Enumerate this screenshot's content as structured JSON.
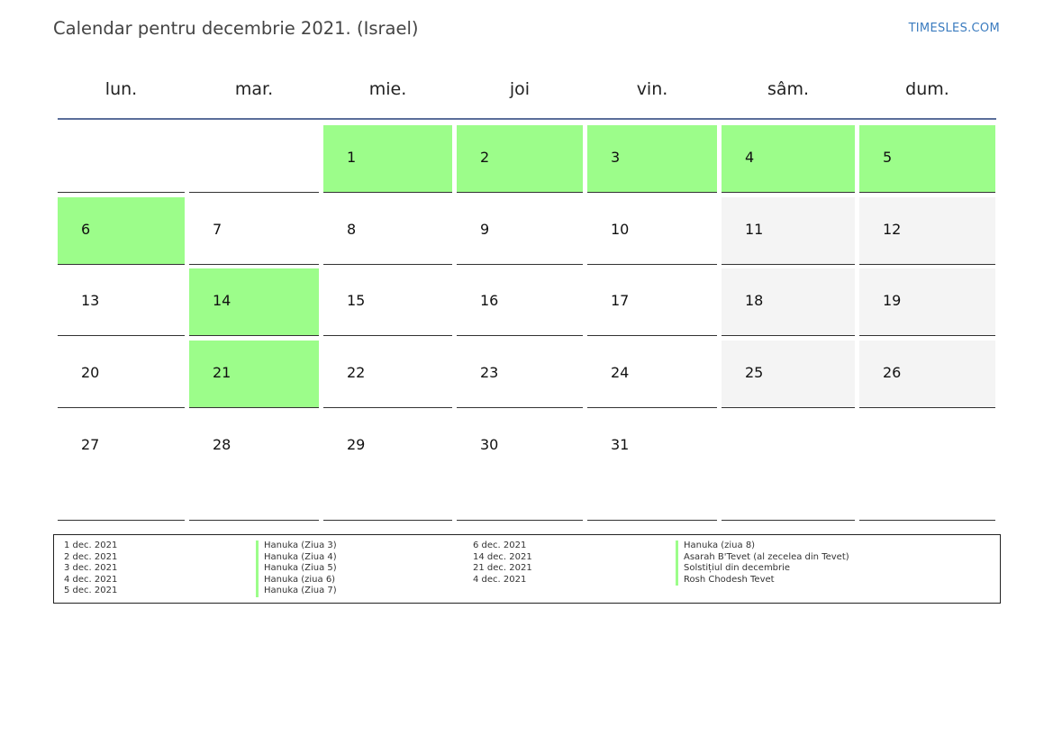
{
  "header": {
    "title": "Calendar pentru decembrie 2021. (Israel)",
    "site": "TIMESLES.COM"
  },
  "weekdays": [
    "lun.",
    "mar.",
    "mie.",
    "joi",
    "vin.",
    "sâm.",
    "dum."
  ],
  "colors": {
    "holiday": "#9cfd8a",
    "weekend": "#f4f4f4",
    "header_line": "#5a6e9a"
  },
  "weeks": [
    [
      {
        "day": "",
        "holiday": false,
        "weekend": false
      },
      {
        "day": "",
        "holiday": false,
        "weekend": false
      },
      {
        "day": "1",
        "holiday": true,
        "weekend": false
      },
      {
        "day": "2",
        "holiday": true,
        "weekend": false
      },
      {
        "day": "3",
        "holiday": true,
        "weekend": false
      },
      {
        "day": "4",
        "holiday": true,
        "weekend": true
      },
      {
        "day": "5",
        "holiday": true,
        "weekend": true
      }
    ],
    [
      {
        "day": "6",
        "holiday": true,
        "weekend": false
      },
      {
        "day": "7",
        "holiday": false,
        "weekend": false
      },
      {
        "day": "8",
        "holiday": false,
        "weekend": false
      },
      {
        "day": "9",
        "holiday": false,
        "weekend": false
      },
      {
        "day": "10",
        "holiday": false,
        "weekend": false
      },
      {
        "day": "11",
        "holiday": false,
        "weekend": true
      },
      {
        "day": "12",
        "holiday": false,
        "weekend": true
      }
    ],
    [
      {
        "day": "13",
        "holiday": false,
        "weekend": false
      },
      {
        "day": "14",
        "holiday": true,
        "weekend": false
      },
      {
        "day": "15",
        "holiday": false,
        "weekend": false
      },
      {
        "day": "16",
        "holiday": false,
        "weekend": false
      },
      {
        "day": "17",
        "holiday": false,
        "weekend": false
      },
      {
        "day": "18",
        "holiday": false,
        "weekend": true
      },
      {
        "day": "19",
        "holiday": false,
        "weekend": true
      }
    ],
    [
      {
        "day": "20",
        "holiday": false,
        "weekend": false
      },
      {
        "day": "21",
        "holiday": true,
        "weekend": false
      },
      {
        "day": "22",
        "holiday": false,
        "weekend": false
      },
      {
        "day": "23",
        "holiday": false,
        "weekend": false
      },
      {
        "day": "24",
        "holiday": false,
        "weekend": false
      },
      {
        "day": "25",
        "holiday": false,
        "weekend": true
      },
      {
        "day": "26",
        "holiday": false,
        "weekend": true
      }
    ],
    [
      {
        "day": "27",
        "holiday": false,
        "weekend": false
      },
      {
        "day": "28",
        "holiday": false,
        "weekend": false
      },
      {
        "day": "29",
        "holiday": false,
        "weekend": false
      },
      {
        "day": "30",
        "holiday": false,
        "weekend": false
      },
      {
        "day": "31",
        "holiday": false,
        "weekend": false
      },
      {
        "day": "",
        "holiday": false,
        "weekend": false
      },
      {
        "day": "",
        "holiday": false,
        "weekend": false
      }
    ]
  ],
  "legend": {
    "left": [
      {
        "date": "1 dec. 2021",
        "name": "Hanuka (Ziua 3)"
      },
      {
        "date": "2 dec. 2021",
        "name": "Hanuka (Ziua 4)"
      },
      {
        "date": "3 dec. 2021",
        "name": "Hanuka (Ziua 5)"
      },
      {
        "date": "4 dec. 2021",
        "name": "Hanuka (ziua 6)"
      },
      {
        "date": "5 dec. 2021",
        "name": "Hanuka (Ziua 7)"
      }
    ],
    "right": [
      {
        "date": "6 dec. 2021",
        "name": "Hanuka (ziua 8)"
      },
      {
        "date": "14 dec. 2021",
        "name": "Asarah B'Tevet (al zecelea din Tevet)"
      },
      {
        "date": "21 dec. 2021",
        "name": "Solstițiul din decembrie"
      },
      {
        "date": "4 dec. 2021",
        "name": "Rosh Chodesh Tevet"
      }
    ]
  }
}
